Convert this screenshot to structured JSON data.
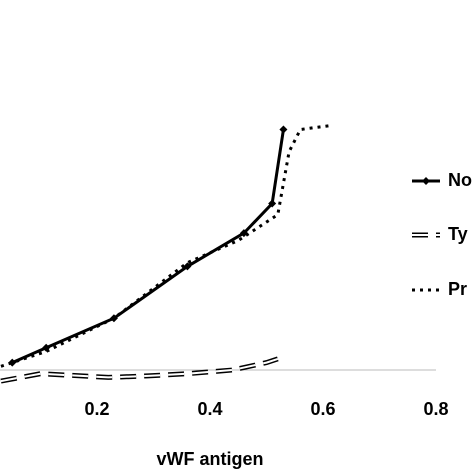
{
  "chart_data": {
    "type": "line",
    "x_label": "vWF antigen",
    "xlim": [
      0,
      0.8
    ],
    "xticks": [
      0.2,
      0.4,
      0.6,
      0.8
    ],
    "ylim": [
      0,
      1
    ],
    "series": [
      {
        "name": "No",
        "color": "#000000",
        "style": "solid",
        "marker": "diamond",
        "x": [
          0.05,
          0.11,
          0.23,
          0.36,
          0.46,
          0.51,
          0.53
        ],
        "values": [
          0.02,
          0.06,
          0.14,
          0.28,
          0.37,
          0.45,
          0.65
        ]
      },
      {
        "name": "Ty",
        "color": "#000000",
        "style": "dashed",
        "x": [
          0.03,
          0.1,
          0.15,
          0.22,
          0.29,
          0.36,
          0.44,
          0.5,
          0.52
        ],
        "values": [
          -0.03,
          -0.01,
          -0.014,
          -0.02,
          -0.016,
          -0.01,
          0,
          0.02,
          0.03
        ]
      },
      {
        "name": "Pr",
        "color": "#000000",
        "style": "dotted",
        "x": [
          0.03,
          0.11,
          0.23,
          0.36,
          0.45,
          0.52,
          0.54,
          0.56,
          0.61
        ],
        "values": [
          0.01,
          0.05,
          0.14,
          0.29,
          0.35,
          0.42,
          0.59,
          0.65,
          0.66
        ]
      }
    ]
  }
}
